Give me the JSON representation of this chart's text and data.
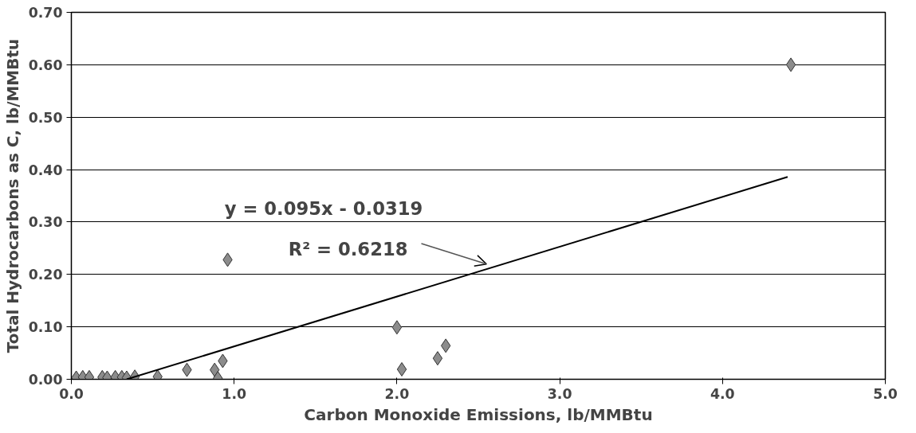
{
  "chart_data": {
    "type": "scatter",
    "xlabel": "Carbon Monoxide Emissions, lb/MMBtu",
    "ylabel": "Total Hydrocarbons as C, lb/MMBtu",
    "series": [
      {
        "color": "#8c8c8c",
        "marker": "diamond",
        "x": [
          0.03,
          0.07,
          0.11,
          0.19,
          0.22,
          0.27,
          0.31,
          0.34,
          0.39,
          0.53,
          0.71,
          0.88,
          0.9,
          0.93,
          0.96,
          2.0,
          2.03,
          2.25,
          2.3,
          4.42
        ],
        "values": [
          0.003,
          0.004,
          0.004,
          0.004,
          0.003,
          0.004,
          0.004,
          0.003,
          0.005,
          0.005,
          0.018,
          0.018,
          0.002,
          0.035,
          0.228,
          0.099,
          0.019,
          0.04,
          0.064,
          0.6
        ]
      },
      {
        "type": "line",
        "color": "#000000",
        "x": [
          0.34,
          4.4
        ],
        "values": [
          0.0,
          0.386
        ]
      }
    ],
    "annotations": [
      "y = 0.095x - 0.0319",
      "R² = 0.6218"
    ],
    "xlim": [
      0,
      5
    ],
    "ylim": [
      0,
      0.7
    ],
    "xticks": [
      {
        "value": 0,
        "label": "0.0"
      },
      {
        "value": 1,
        "label": "1.0"
      },
      {
        "value": 2,
        "label": "2.0"
      },
      {
        "value": 3,
        "label": "3.0"
      },
      {
        "value": 4,
        "label": "4.0"
      },
      {
        "value": 5,
        "label": "5.0"
      }
    ],
    "yticks": [
      {
        "value": 0,
        "label": "0.00"
      },
      {
        "value": 0.1,
        "label": "0.10"
      },
      {
        "value": 0.2,
        "label": "0.20"
      },
      {
        "value": 0.3,
        "label": "0.30"
      },
      {
        "value": 0.4,
        "label": "0.40"
      },
      {
        "value": 0.5,
        "label": "0.50"
      },
      {
        "value": 0.6,
        "label": "0.60"
      },
      {
        "value": 0.7,
        "label": "0.70"
      }
    ],
    "grid": "y",
    "line_style": "solid"
  }
}
